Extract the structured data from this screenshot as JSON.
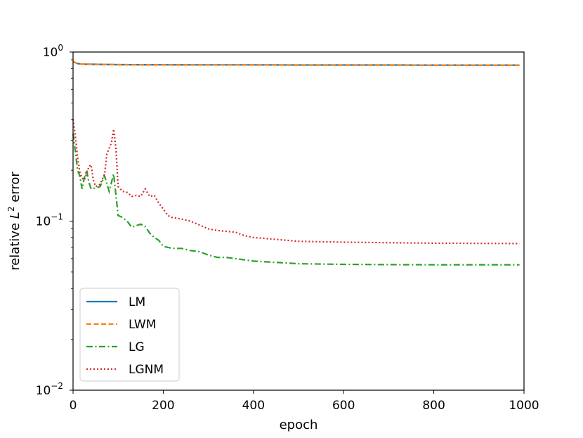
{
  "chart_data": {
    "type": "line",
    "xlabel": "epoch",
    "ylabel_prefix": "relative ",
    "ylabel_var": "L",
    "ylabel_sup": "2",
    "ylabel_suffix": " error",
    "xlim": [
      0,
      1000
    ],
    "ylim": [
      0.01,
      1
    ],
    "yscale": "log",
    "grid": false,
    "legend_position": "lower left",
    "x_ticks": [
      0,
      200,
      400,
      600,
      800,
      1000
    ],
    "x_tick_labels": [
      "0",
      "200",
      "400",
      "600",
      "800",
      "1000"
    ],
    "y_ticks": [
      {
        "value": 0.01,
        "base": "10",
        "exp": "−2"
      },
      {
        "value": 0.1,
        "base": "10",
        "exp": "−1"
      },
      {
        "value": 1,
        "base": "10",
        "exp": "0"
      }
    ],
    "series": [
      {
        "name": "LM",
        "color": "#1f77b4",
        "style": "solid",
        "x": [
          0,
          5,
          10,
          20,
          50,
          100,
          150,
          200,
          300,
          400,
          500,
          600,
          700,
          800,
          900,
          990
        ],
        "y": [
          0.88,
          0.865,
          0.855,
          0.848,
          0.846,
          0.842,
          0.841,
          0.84,
          0.839,
          0.839,
          0.838,
          0.838,
          0.838,
          0.837,
          0.837,
          0.837
        ]
      },
      {
        "name": "LWM",
        "color": "#ff7f0e",
        "style": "dashed",
        "x": [
          0,
          5,
          10,
          20,
          50,
          100,
          150,
          200,
          300,
          400,
          500,
          600,
          700,
          800,
          900,
          990
        ],
        "y": [
          0.88,
          0.865,
          0.855,
          0.848,
          0.846,
          0.842,
          0.841,
          0.84,
          0.839,
          0.839,
          0.838,
          0.838,
          0.838,
          0.837,
          0.837,
          0.837
        ]
      },
      {
        "name": "LG",
        "color": "#2ca02c",
        "style": "dashdot",
        "x": [
          0,
          5,
          10,
          15,
          20,
          25,
          30,
          35,
          40,
          50,
          60,
          70,
          80,
          90,
          100,
          110,
          120,
          130,
          140,
          150,
          160,
          170,
          180,
          190,
          200,
          220,
          240,
          260,
          280,
          300,
          320,
          340,
          360,
          380,
          400,
          450,
          500,
          600,
          700,
          800,
          900,
          990
        ],
        "y": [
          0.33,
          0.26,
          0.2,
          0.185,
          0.155,
          0.18,
          0.2,
          0.17,
          0.155,
          0.157,
          0.16,
          0.185,
          0.15,
          0.19,
          0.108,
          0.105,
          0.1,
          0.092,
          0.094,
          0.096,
          0.093,
          0.085,
          0.08,
          0.077,
          0.071,
          0.069,
          0.069,
          0.067,
          0.066,
          0.063,
          0.061,
          0.061,
          0.06,
          0.059,
          0.058,
          0.057,
          0.056,
          0.0555,
          0.0553,
          0.0552,
          0.0552,
          0.0552
        ]
      },
      {
        "name": "LGNM",
        "color": "#d62728",
        "style": "dotted",
        "x": [
          0,
          5,
          10,
          15,
          20,
          25,
          30,
          35,
          40,
          45,
          50,
          60,
          70,
          75,
          80,
          85,
          90,
          95,
          100,
          110,
          120,
          130,
          140,
          150,
          160,
          170,
          180,
          190,
          200,
          210,
          220,
          240,
          260,
          280,
          300,
          320,
          340,
          360,
          380,
          400,
          450,
          500,
          600,
          700,
          800,
          900,
          990
        ],
        "y": [
          0.4,
          0.32,
          0.24,
          0.195,
          0.18,
          0.175,
          0.19,
          0.21,
          0.215,
          0.175,
          0.16,
          0.165,
          0.19,
          0.25,
          0.27,
          0.29,
          0.35,
          0.27,
          0.16,
          0.15,
          0.148,
          0.14,
          0.142,
          0.14,
          0.155,
          0.14,
          0.142,
          0.128,
          0.118,
          0.108,
          0.105,
          0.103,
          0.1,
          0.095,
          0.09,
          0.088,
          0.087,
          0.086,
          0.082,
          0.08,
          0.078,
          0.076,
          0.075,
          0.0745,
          0.074,
          0.0738,
          0.0737
        ]
      }
    ]
  }
}
